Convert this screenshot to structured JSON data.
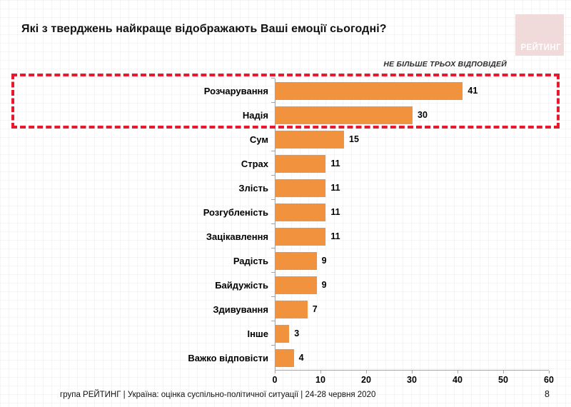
{
  "header": {
    "logo_text": "РЕЙТИНГ"
  },
  "annotation": "НЕ БІЛЬШЕ ТРЬОХ ВІДПОВІДЕЙ",
  "footer": {
    "text": "група РЕЙТИНГ |  Україна: оцінка суспільно-політичної ситуації  | 24-28 червня 2020",
    "page_number": "8"
  },
  "colors": {
    "bar": "#F0923E",
    "highlight_box": "#E8192C",
    "axis": "#A6A6A6",
    "logo_bg": "#F1DADA",
    "logo_text": "#FFFFFF"
  },
  "chart_data": {
    "type": "bar",
    "orientation": "horizontal",
    "title": "Які з тверджень найкраще відображають Ваші емоції сьогодні?",
    "annotation": "НЕ БІЛЬШЕ ТРЬОХ ВІДПОВІДЕЙ",
    "categories": [
      "Розчарування",
      "Надія",
      "Сум",
      "Страх",
      "Злість",
      "Розгубленість",
      "Зацікавлення",
      "Радість",
      "Байдужість",
      "Здивування",
      "Інше",
      "Важко відповісти"
    ],
    "values": [
      41,
      30,
      15,
      11,
      11,
      11,
      11,
      9,
      9,
      7,
      3,
      4
    ],
    "xlim": [
      0,
      60
    ],
    "x_ticks": [
      0,
      10,
      20,
      30,
      40,
      50,
      60
    ],
    "grid": false,
    "legend": "none",
    "highlighted_categories": [
      "Розчарування",
      "Надія"
    ],
    "highlight_style": "red-dashed-box"
  }
}
